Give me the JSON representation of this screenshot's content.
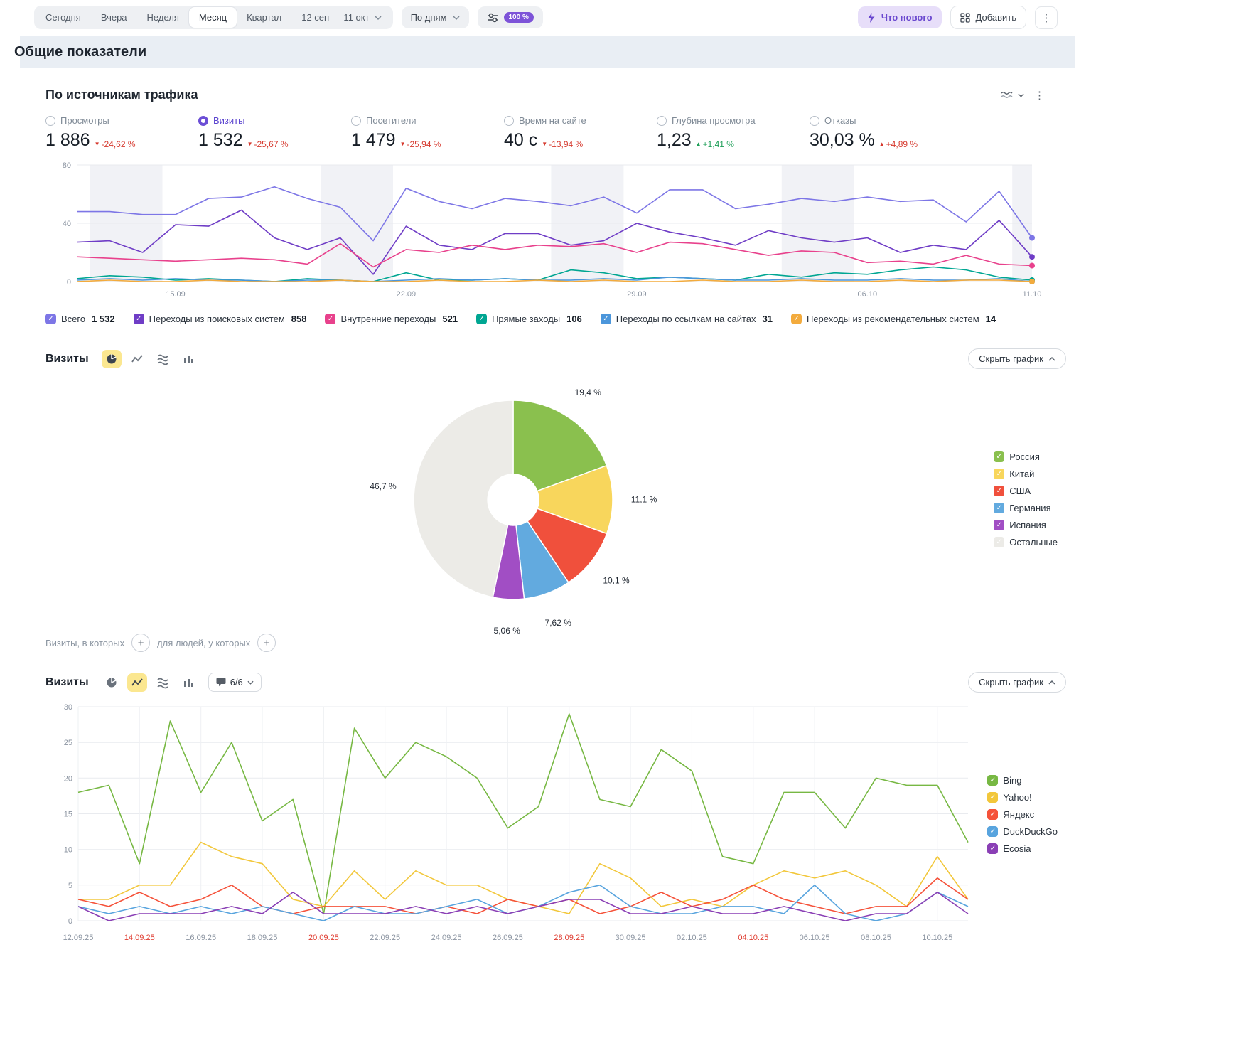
{
  "icons": {
    "check": "✓",
    "more": "⋮",
    "plus": "+",
    "arrow_up": "▲",
    "arrow_down": "▼"
  },
  "toolbar": {
    "period_tabs": [
      {
        "label": "Сегодня",
        "selected": false
      },
      {
        "label": "Вчера",
        "selected": false
      },
      {
        "label": "Неделя",
        "selected": false
      },
      {
        "label": "Месяц",
        "selected": true
      },
      {
        "label": "Квартал",
        "selected": false
      }
    ],
    "date_range": "12 сен — 11 окт",
    "granularity": "По дням",
    "sampling_badge": "100 %",
    "whats_new": "Что нового",
    "add": "Добавить"
  },
  "page": {
    "title": "Общие показатели"
  },
  "traffic_section": {
    "title": "По источникам трафика",
    "metrics": [
      {
        "label": "Просмотры",
        "value": "1 886",
        "delta": "-24,62 %",
        "arrow": "down",
        "color": "red",
        "selected": false
      },
      {
        "label": "Визиты",
        "value": "1 532",
        "delta": "-25,67 %",
        "arrow": "down",
        "color": "red",
        "selected": true
      },
      {
        "label": "Посетители",
        "value": "1 479",
        "delta": "-25,94 %",
        "arrow": "down",
        "color": "red",
        "selected": false
      },
      {
        "label": "Время на сайте",
        "value": "40 с",
        "delta": "-13,94 %",
        "arrow": "down",
        "color": "red",
        "selected": false
      },
      {
        "label": "Глубина просмотра",
        "value": "1,23",
        "delta": "+1,41 %",
        "arrow": "up",
        "color": "green",
        "selected": false
      },
      {
        "label": "Отказы",
        "value": "30,03 %",
        "delta": "+4,89 %",
        "arrow": "up",
        "color": "red",
        "selected": false
      }
    ]
  },
  "visits_pie": {
    "title": "Визиты",
    "hide_chart": "Скрыть график"
  },
  "filters": {
    "left": "Визиты, в которых",
    "right": "для людей, у которых"
  },
  "visits_lines": {
    "title": "Визиты",
    "goal_selector": "6/6",
    "hide_chart": "Скрыть график"
  },
  "chart_data": [
    {
      "type": "line",
      "title": "По источникам трафика",
      "ylim": [
        0,
        80
      ],
      "yticks": [
        0,
        40,
        80
      ],
      "x_tick_labels": [
        {
          "text": "15.09",
          "index": 3
        },
        {
          "text": "22.09",
          "index": 10
        },
        {
          "text": "29.09",
          "index": 17
        },
        {
          "text": "06.10",
          "index": 24
        },
        {
          "text": "11.10",
          "index": 29
        }
      ],
      "weekend_bands": [
        [
          1,
          2
        ],
        [
          8,
          9
        ],
        [
          15,
          16
        ],
        [
          22,
          23
        ],
        [
          29,
          29
        ]
      ],
      "end_dots": true,
      "series": [
        {
          "name": "Всего",
          "total": "1 532",
          "color": "#7d76e6",
          "values": [
            48,
            48,
            46,
            46,
            57,
            58,
            65,
            57,
            51,
            28,
            64,
            55,
            50,
            57,
            55,
            52,
            58,
            47,
            63,
            63,
            50,
            53,
            57,
            55,
            58,
            55,
            56,
            41,
            62,
            30
          ]
        },
        {
          "name": "Переходы из поисковых систем",
          "total": "858",
          "color": "#6f3dc6",
          "values": [
            27,
            28,
            20,
            39,
            38,
            49,
            30,
            22,
            30,
            5,
            38,
            25,
            22,
            33,
            33,
            25,
            28,
            40,
            34,
            30,
            25,
            35,
            30,
            27,
            30,
            20,
            25,
            22,
            42,
            17
          ]
        },
        {
          "name": "Внутренние переходы",
          "total": "521",
          "color": "#e8418c",
          "values": [
            17,
            16,
            15,
            14,
            15,
            16,
            15,
            12,
            26,
            10,
            22,
            20,
            25,
            22,
            25,
            24,
            26,
            20,
            27,
            26,
            22,
            18,
            21,
            20,
            13,
            14,
            12,
            18,
            12,
            11
          ]
        },
        {
          "name": "Прямые заходы",
          "total": "106",
          "color": "#00a692",
          "values": [
            2,
            4,
            3,
            1,
            2,
            1,
            0,
            2,
            1,
            0,
            6,
            1,
            1,
            2,
            1,
            8,
            6,
            2,
            3,
            2,
            1,
            5,
            3,
            6,
            5,
            8,
            10,
            8,
            3,
            1
          ]
        },
        {
          "name": "Переходы по ссылкам на сайтах",
          "total": "31",
          "color": "#4b96db",
          "values": [
            1,
            2,
            1,
            2,
            1,
            1,
            0,
            1,
            1,
            0,
            1,
            2,
            1,
            2,
            1,
            1,
            2,
            1,
            3,
            2,
            1,
            1,
            2,
            1,
            1,
            2,
            1,
            1,
            2,
            0
          ]
        },
        {
          "name": "Переходы из рекомендательных систем",
          "total": "14",
          "color": "#f3ab3d",
          "values": [
            0,
            1,
            0,
            0,
            1,
            0,
            0,
            0,
            1,
            0,
            0,
            1,
            0,
            0,
            1,
            0,
            1,
            0,
            0,
            1,
            0,
            0,
            1,
            0,
            0,
            1,
            0,
            1,
            1,
            0
          ]
        }
      ]
    },
    {
      "type": "pie",
      "title": "Визиты",
      "slices": [
        {
          "label": "Россия",
          "value": 19.4,
          "display": "19,4 %",
          "color": "#8ac04e"
        },
        {
          "label": "Китай",
          "value": 11.1,
          "display": "11,1 %",
          "color": "#f8d65c"
        },
        {
          "label": "США",
          "value": 10.1,
          "display": "10,1 %",
          "color": "#f0503c"
        },
        {
          "label": "Германия",
          "value": 7.62,
          "display": "7,62 %",
          "color": "#62aadf"
        },
        {
          "label": "Испания",
          "value": 5.06,
          "display": "5,06 %",
          "color": "#a14ec4"
        },
        {
          "label": "Остальные",
          "value": 46.7,
          "display": "46,7 %",
          "color": "#ecebe7"
        }
      ]
    },
    {
      "type": "line",
      "title": "Визиты",
      "ylim": [
        0,
        30
      ],
      "yticks": [
        0,
        5,
        10,
        15,
        20,
        25,
        30
      ],
      "x_tick_labels": [
        {
          "text": "12.09.25",
          "index": 0
        },
        {
          "text": "14.09.25",
          "index": 2,
          "red": true
        },
        {
          "text": "16.09.25",
          "index": 4
        },
        {
          "text": "18.09.25",
          "index": 6
        },
        {
          "text": "20.09.25",
          "index": 8,
          "red": true
        },
        {
          "text": "22.09.25",
          "index": 10
        },
        {
          "text": "24.09.25",
          "index": 12
        },
        {
          "text": "26.09.25",
          "index": 14
        },
        {
          "text": "28.09.25",
          "index": 16,
          "red": true
        },
        {
          "text": "30.09.25",
          "index": 18
        },
        {
          "text": "02.10.25",
          "index": 20
        },
        {
          "text": "04.10.25",
          "index": 22,
          "red": true
        },
        {
          "text": "06.10.25",
          "index": 24
        },
        {
          "text": "08.10.25",
          "index": 26
        },
        {
          "text": "10.10.25",
          "index": 28
        }
      ],
      "vertical_grid": true,
      "series": [
        {
          "name": "Bing",
          "color": "#77b843",
          "values": [
            18,
            19,
            8,
            28,
            18,
            25,
            14,
            17,
            1,
            27,
            20,
            25,
            23,
            20,
            13,
            16,
            29,
            17,
            16,
            24,
            21,
            9,
            8,
            18,
            18,
            13,
            20,
            19,
            19,
            11
          ]
        },
        {
          "name": "Yahoo!",
          "color": "#f2c73b",
          "values": [
            3,
            3,
            5,
            5,
            11,
            9,
            8,
            3,
            2,
            7,
            3,
            7,
            5,
            5,
            3,
            2,
            1,
            8,
            6,
            2,
            3,
            2,
            5,
            7,
            6,
            7,
            5,
            2,
            9,
            3
          ]
        },
        {
          "name": "Яндекс",
          "color": "#f5523a",
          "values": [
            3,
            2,
            4,
            2,
            3,
            5,
            2,
            1,
            2,
            2,
            2,
            1,
            2,
            1,
            3,
            2,
            3,
            1,
            2,
            4,
            2,
            3,
            5,
            3,
            2,
            1,
            2,
            2,
            6,
            3
          ]
        },
        {
          "name": "DuckDuckGo",
          "color": "#58a4de",
          "values": [
            2,
            1,
            2,
            1,
            2,
            1,
            2,
            1,
            0,
            2,
            1,
            1,
            2,
            3,
            1,
            2,
            4,
            5,
            2,
            1,
            1,
            2,
            2,
            1,
            5,
            1,
            0,
            1,
            4,
            2
          ]
        },
        {
          "name": "Ecosia",
          "color": "#8a3fb5",
          "values": [
            2,
            0,
            1,
            1,
            1,
            2,
            1,
            4,
            1,
            1,
            1,
            2,
            1,
            2,
            1,
            2,
            3,
            3,
            1,
            1,
            2,
            1,
            1,
            2,
            1,
            0,
            1,
            1,
            4,
            1
          ]
        }
      ]
    }
  ]
}
